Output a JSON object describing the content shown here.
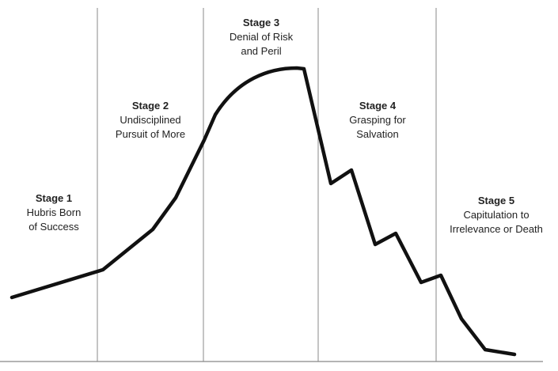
{
  "stages": [
    {
      "title": "Stage 1",
      "desc_line1": "Hubris Born",
      "desc_line2": "of Success"
    },
    {
      "title": "Stage 2",
      "desc_line1": "Undisciplined",
      "desc_line2": "Pursuit of More"
    },
    {
      "title": "Stage 3",
      "desc_line1": "Denial of Risk",
      "desc_line2": "and Peril"
    },
    {
      "title": "Stage 4",
      "desc_line1": "Grasping for",
      "desc_line2": "Salvation"
    },
    {
      "title": "Stage 5",
      "desc_line1": "Capitulation to",
      "desc_line2": "Irrelevance or Death"
    }
  ],
  "colors": {
    "curve": "#111111",
    "divider": "#888888",
    "baseline": "#888888",
    "text": "#222222"
  }
}
